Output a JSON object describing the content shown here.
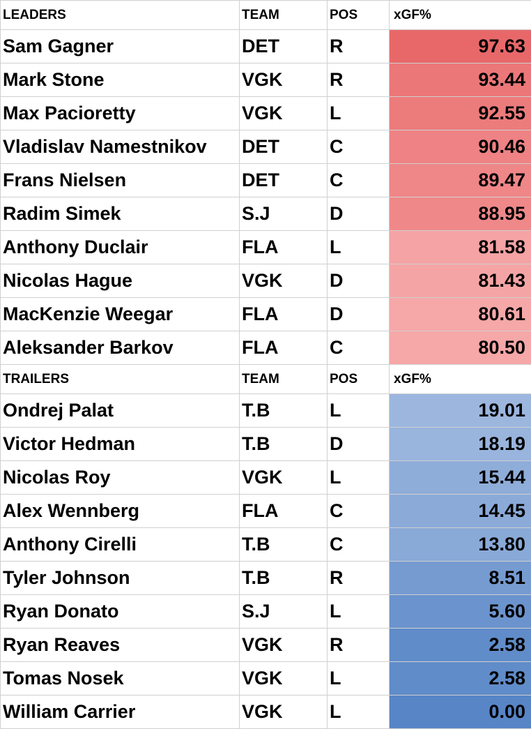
{
  "sections": [
    {
      "header": [
        "LEADERS",
        "TEAM",
        "POS",
        "xGF%"
      ],
      "rows": [
        [
          "Sam Gagner",
          "DET",
          "R",
          "97.63"
        ],
        [
          "Mark Stone",
          "VGK",
          "R",
          "93.44"
        ],
        [
          "Max Pacioretty",
          "VGK",
          "L",
          "92.55"
        ],
        [
          "Vladislav Namestnikov",
          "DET",
          "C",
          "90.46"
        ],
        [
          "Frans Nielsen",
          "DET",
          "C",
          "89.47"
        ],
        [
          "Radim Simek",
          "S.J",
          "D",
          "88.95"
        ],
        [
          "Anthony Duclair",
          "FLA",
          "L",
          "81.58"
        ],
        [
          "Nicolas Hague",
          "VGK",
          "D",
          "81.43"
        ],
        [
          "MacKenzie Weegar",
          "FLA",
          "D",
          "80.61"
        ],
        [
          "Aleksander Barkov",
          "FLA",
          "C",
          "80.50"
        ]
      ]
    },
    {
      "header": [
        "TRAILERS",
        "TEAM",
        "POS",
        "xGF%"
      ],
      "rows": [
        [
          "Ondrej Palat",
          "T.B",
          "L",
          "19.01"
        ],
        [
          "Victor Hedman",
          "T.B",
          "D",
          "18.19"
        ],
        [
          "Nicolas Roy",
          "VGK",
          "L",
          "15.44"
        ],
        [
          "Alex Wennberg",
          "FLA",
          "C",
          "14.45"
        ],
        [
          "Anthony Cirelli",
          "T.B",
          "C",
          "13.80"
        ],
        [
          "Tyler Johnson",
          "T.B",
          "R",
          "8.51"
        ],
        [
          "Ryan Donato",
          "S.J",
          "L",
          "5.60"
        ],
        [
          "Ryan Reaves",
          "VGK",
          "R",
          "2.58"
        ],
        [
          "Tomas Nosek",
          "VGK",
          "L",
          "2.58"
        ],
        [
          "William Carrier",
          "VGK",
          "L",
          "0.00"
        ]
      ]
    }
  ]
}
